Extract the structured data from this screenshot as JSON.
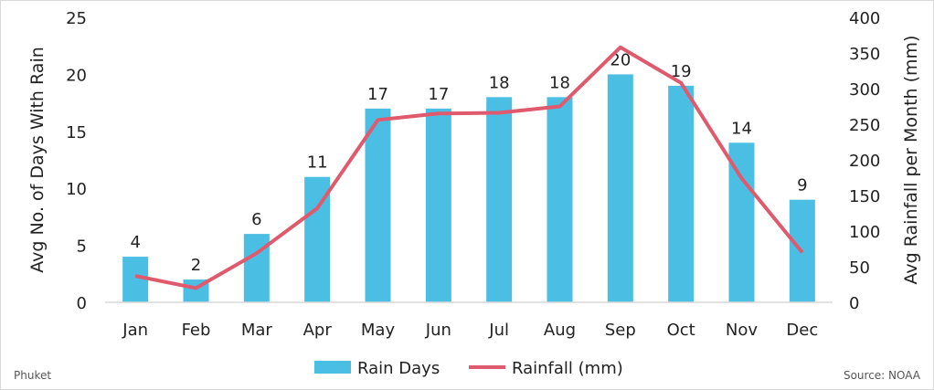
{
  "chart_data": {
    "type": "bar+line",
    "categories": [
      "Jan",
      "Feb",
      "Mar",
      "Apr",
      "May",
      "Jun",
      "Jul",
      "Aug",
      "Sep",
      "Oct",
      "Nov",
      "Dec"
    ],
    "series": [
      {
        "name": "Rain Days",
        "type": "bar",
        "axis": "left",
        "color": "#4bbee3",
        "values": [
          4,
          2,
          6,
          11,
          17,
          17,
          18,
          18,
          20,
          19,
          14,
          9
        ]
      },
      {
        "name": "Rainfall (mm)",
        "type": "line",
        "axis": "right",
        "color": "#e05a6d",
        "values": [
          37,
          20,
          69,
          132,
          256,
          265,
          266,
          275,
          358,
          308,
          174,
          70
        ]
      }
    ],
    "ylabel": "Avg No. of Days With Rain",
    "y2label": "Avg Rainfall per Month (mm)",
    "ylim": [
      0,
      25
    ],
    "y2lim": [
      0,
      400
    ],
    "yticks": [
      0,
      5,
      10,
      15,
      20,
      25
    ],
    "y2ticks": [
      0,
      50,
      100,
      150,
      200,
      250,
      300,
      350,
      400
    ],
    "grid": false,
    "legend": "bottom",
    "data_labels": true
  },
  "footer": {
    "left": "Phuket",
    "right": "Source: NOAA"
  }
}
